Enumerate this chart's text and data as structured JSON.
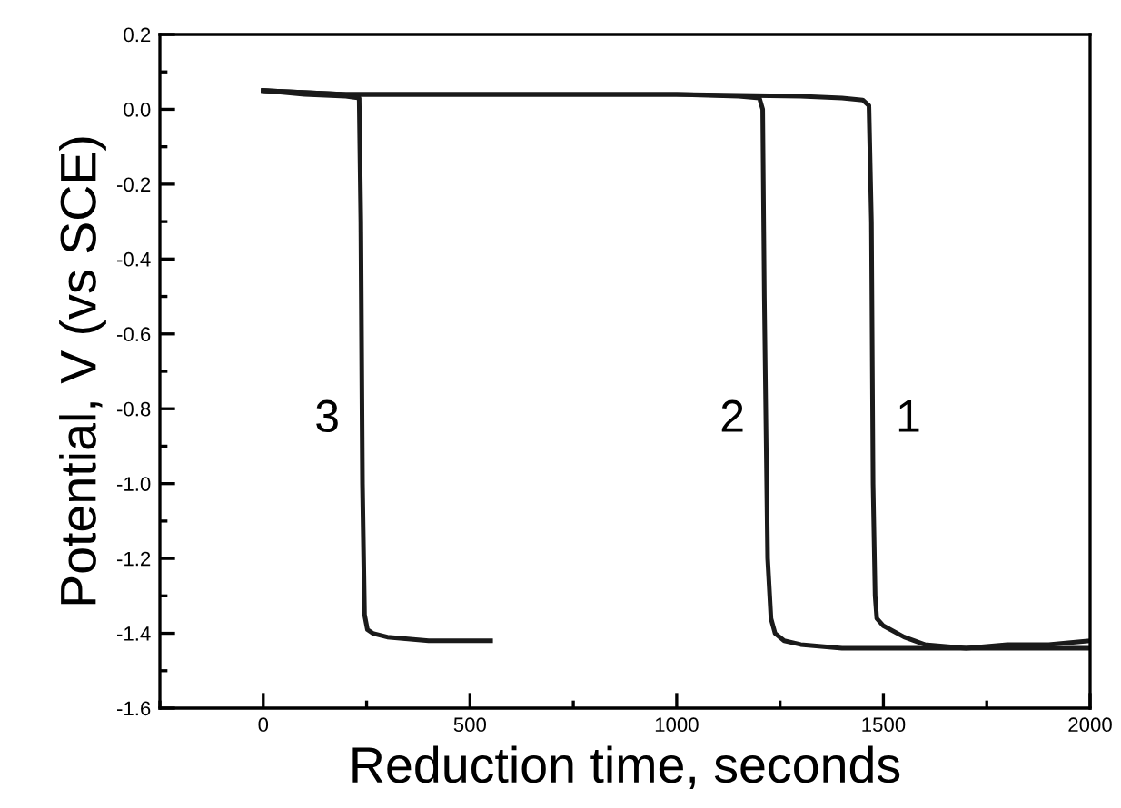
{
  "chart_data": {
    "type": "line",
    "xlabel": "Reduction time, seconds",
    "ylabel": "Potential, V (vs SCE)",
    "xlim": [
      -250,
      2000
    ],
    "xticks": [
      0,
      500,
      1000,
      1500,
      2000
    ],
    "ylim": [
      -1.6,
      0.2
    ],
    "yticks": [
      {
        "value": 0.2,
        "label": "0.2"
      },
      {
        "value": 0.0,
        "label": "0.0"
      },
      {
        "value": -0.2,
        "label": "-0.2"
      },
      {
        "value": -0.4,
        "label": "-0.4"
      },
      {
        "value": -0.6,
        "label": "-0.6"
      },
      {
        "value": -0.8,
        "label": "-0.8"
      },
      {
        "value": -1.0,
        "label": "-1.0"
      },
      {
        "value": -1.2,
        "label": "-1.2"
      },
      {
        "value": -1.4,
        "label": "-1.4"
      },
      {
        "value": -1.6,
        "label": "-1.6"
      }
    ],
    "grid": false,
    "legend": false,
    "marker": "none",
    "line_style": "solid",
    "series": [
      {
        "name": "1",
        "color": "#1a1a1a",
        "x": [
          0,
          200,
          600,
          1000,
          1300,
          1400,
          1450,
          1465,
          1471,
          1475,
          1480,
          1484,
          1500,
          1550,
          1600,
          1700,
          1800,
          1900,
          2000
        ],
        "values": [
          0.05,
          0.04,
          0.04,
          0.04,
          0.035,
          0.03,
          0.025,
          0.01,
          -0.3,
          -1.0,
          -1.3,
          -1.36,
          -1.38,
          -1.41,
          -1.43,
          -1.44,
          -1.44,
          -1.44,
          -1.44
        ]
      },
      {
        "name": "2",
        "color": "#1a1a1a",
        "x": [
          0,
          200,
          600,
          1000,
          1150,
          1200,
          1208,
          1212,
          1220,
          1228,
          1238,
          1260,
          1300,
          1400,
          1500,
          1600,
          1700,
          1800,
          1900,
          2000
        ],
        "values": [
          0.05,
          0.04,
          0.04,
          0.04,
          0.035,
          0.03,
          0.0,
          -0.5,
          -1.2,
          -1.36,
          -1.4,
          -1.42,
          -1.43,
          -1.44,
          -1.44,
          -1.44,
          -1.44,
          -1.43,
          -1.43,
          -1.42
        ]
      },
      {
        "name": "3",
        "color": "#1a1a1a",
        "x": [
          0,
          100,
          200,
          232,
          236,
          240,
          245,
          252,
          265,
          300,
          400,
          500,
          550
        ],
        "values": [
          0.05,
          0.04,
          0.035,
          0.03,
          -0.3,
          -1.0,
          -1.35,
          -1.39,
          -1.4,
          -1.41,
          -1.42,
          -1.42,
          -1.42
        ]
      }
    ]
  }
}
